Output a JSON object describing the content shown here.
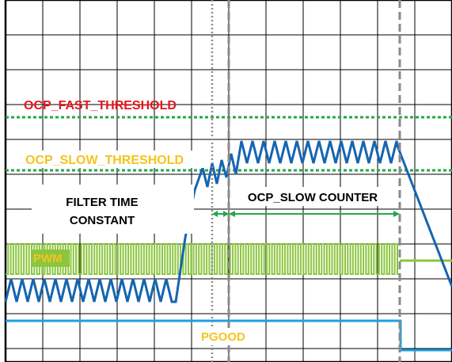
{
  "labels": {
    "ocp_fast": "OCP_FAST_THRESHOLD",
    "ocp_slow": "OCP_SLOW_THRESHOLD",
    "filter_line1": "FILTER TIME",
    "filter_line2": "CONSTANT",
    "slow_counter": "OCP_SLOW COUNTER",
    "pwm": "PWM",
    "pgood": "PGOOD"
  },
  "colors": {
    "grid": "#000000",
    "ocp_fast": "#22a84a",
    "ocp_fast_text": "#e8151b",
    "ocp_slow": "#22a84a",
    "ocp_slow_text": "#f4c31e",
    "inductor_current": "#1565b0",
    "pwm": "#8cc63f",
    "pwm_text": "#f4c31e",
    "pgood": "#1ba1e2",
    "pgood_text": "#f4c31e",
    "markers": "#8a8a8a",
    "arrows": "#22a84a",
    "annotation_text": "#000000"
  }
}
